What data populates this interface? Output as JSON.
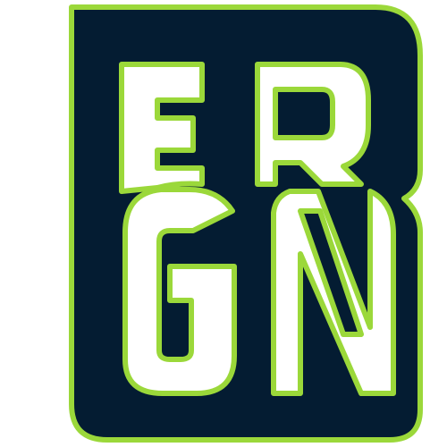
{
  "logo": {
    "letters": "ERGN",
    "colors": {
      "fill": "#041C32",
      "stroke": "#9BD83A",
      "background": "#FFFFFF"
    }
  }
}
